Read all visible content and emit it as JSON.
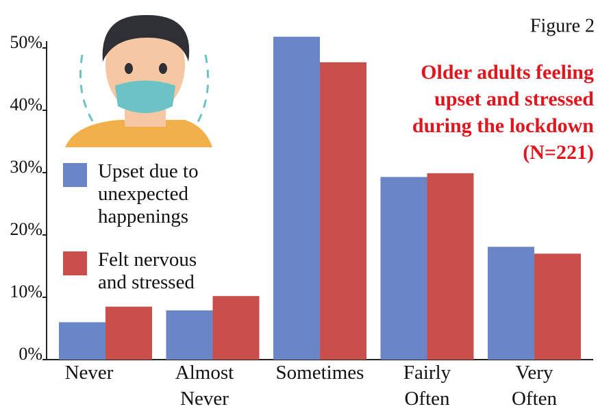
{
  "chart_data": {
    "type": "bar",
    "title": "Older adults feeling upset and stressed during the lockdown (N=221)",
    "annotation": "Figure 2",
    "categories": [
      "Never",
      "Almost Never",
      "Sometimes",
      "Fairly Often",
      "Very Often"
    ],
    "series": [
      {
        "name": "Upset due to unexpected happenings",
        "color": "#6b86c6",
        "values": [
          6.0,
          7.9,
          51.8,
          29.3,
          18.1
        ]
      },
      {
        "name": "Felt nervous and stressed",
        "color": "#c9504a",
        "values": [
          8.5,
          10.2,
          47.7,
          29.9,
          17.0
        ]
      }
    ],
    "ylim": [
      0,
      50
    ],
    "yticks": [
      {
        "value": 0,
        "label": "0%"
      },
      {
        "value": 10,
        "label": "10%"
      },
      {
        "value": 20,
        "label": "20%"
      },
      {
        "value": 30,
        "label": "30%"
      },
      {
        "value": 40,
        "label": "40%"
      },
      {
        "value": 50,
        "label": "50%"
      }
    ],
    "grid": false
  }
}
